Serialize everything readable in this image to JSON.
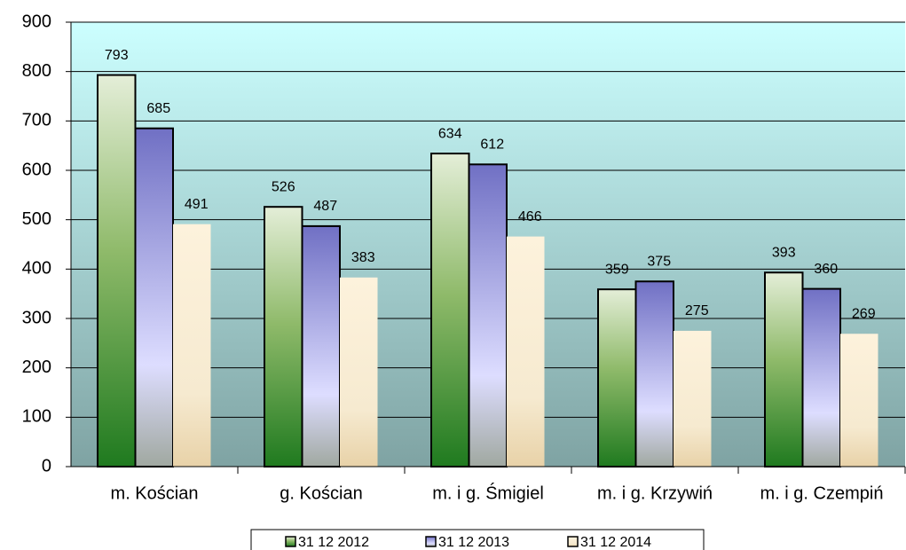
{
  "chart_data": {
    "type": "bar",
    "categories": [
      "m. Kościan",
      "g. Kościan",
      "m. i g. Śmigiel",
      "m. i g. Krzywiń",
      "m. i g. Czempiń"
    ],
    "series": [
      {
        "name": "31 12 2012",
        "color": "#1f7a1f",
        "values": [
          793,
          526,
          634,
          359,
          393
        ]
      },
      {
        "name": "31 12 2013",
        "color": "#7070c4",
        "values": [
          685,
          487,
          612,
          375,
          360
        ]
      },
      {
        "name": "31 12 2014",
        "color": "#e8d2a8",
        "values": [
          491,
          383,
          466,
          275,
          269
        ]
      }
    ],
    "ylim": [
      0,
      900
    ],
    "yticks": [
      0,
      100,
      200,
      300,
      400,
      500,
      600,
      700,
      800,
      900
    ],
    "grid": true,
    "legend": "bottom"
  }
}
